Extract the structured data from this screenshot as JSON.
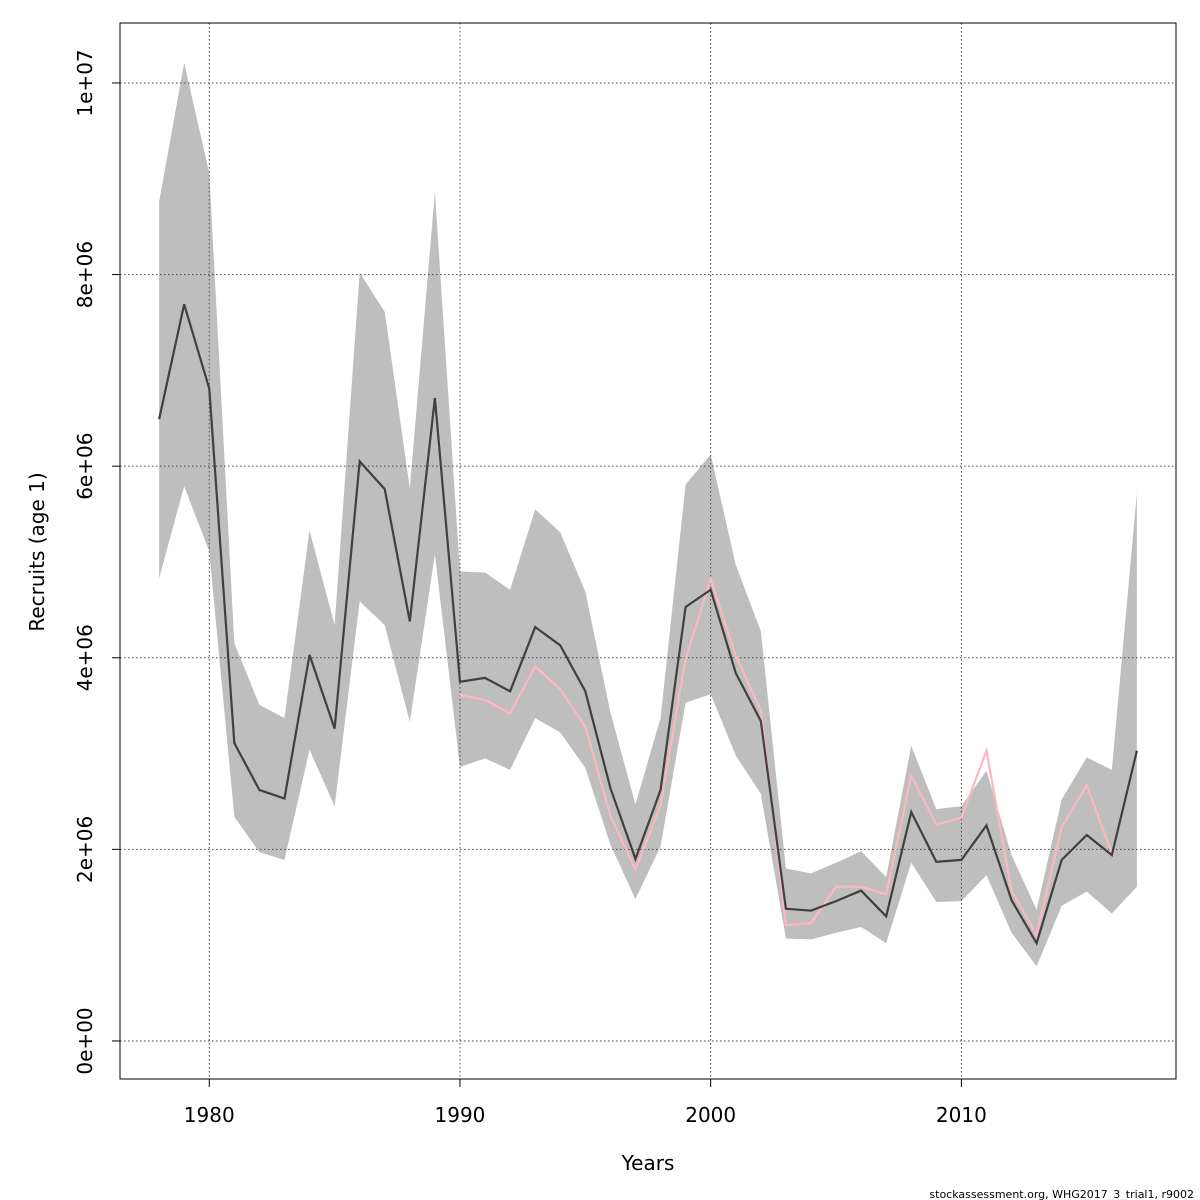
{
  "chart_data": {
    "type": "line",
    "xlabel": "Years",
    "ylabel": "Recruits (age 1)",
    "footer": "stockassessment.org, WHG2017_3_trial1, r9002",
    "x": [
      1978,
      1979,
      1980,
      1981,
      1982,
      1983,
      1984,
      1985,
      1986,
      1987,
      1988,
      1989,
      1990,
      1991,
      1992,
      1993,
      1994,
      1995,
      1996,
      1997,
      1998,
      1999,
      2000,
      2001,
      2002,
      2003,
      2004,
      2005,
      2006,
      2007,
      2008,
      2009,
      2010,
      2011,
      2012,
      2013,
      2014,
      2015,
      2016,
      2017
    ],
    "band": {
      "color": "#bebebe",
      "upper": [
        8760000,
        10210000,
        9060000,
        4150000,
        3510000,
        3370000,
        5330000,
        4340000,
        8020000,
        7610000,
        5770000,
        8860000,
        4900000,
        4890000,
        4710000,
        5550000,
        5310000,
        4690000,
        3430000,
        2470000,
        3370000,
        5810000,
        6120000,
        4970000,
        4280000,
        1800000,
        1750000,
        1860000,
        1980000,
        1710000,
        3080000,
        2420000,
        2450000,
        2820000,
        1940000,
        1370000,
        2520000,
        2960000,
        2830000,
        5720000
      ],
      "lower": [
        4830000,
        5790000,
        5110000,
        2340000,
        1970000,
        1890000,
        3040000,
        2450000,
        4590000,
        4340000,
        3330000,
        5080000,
        2860000,
        2950000,
        2830000,
        3370000,
        3220000,
        2850000,
        2050000,
        1480000,
        2030000,
        3530000,
        3620000,
        2980000,
        2580000,
        1070000,
        1060000,
        1130000,
        1190000,
        1020000,
        1860000,
        1450000,
        1460000,
        1730000,
        1130000,
        780000,
        1410000,
        1560000,
        1330000,
        1610000
      ]
    },
    "series": [
      {
        "color": "#ffb6c1",
        "values": [
          null,
          null,
          null,
          null,
          null,
          null,
          null,
          null,
          null,
          null,
          null,
          null,
          3610000,
          3560000,
          3420000,
          3910000,
          3670000,
          3280000,
          2350000,
          1790000,
          2460000,
          3990000,
          4820000,
          4020000,
          3450000,
          1210000,
          1230000,
          1610000,
          1610000,
          1530000,
          2770000,
          2260000,
          2330000,
          3030000,
          1570000,
          1110000,
          2230000,
          2670000,
          1960000,
          null
        ]
      },
      {
        "color": "#404040",
        "values": [
          6490000,
          7690000,
          6810000,
          3110000,
          2620000,
          2530000,
          4030000,
          3260000,
          6050000,
          5760000,
          4380000,
          6710000,
          3750000,
          3790000,
          3650000,
          4320000,
          4130000,
          3650000,
          2640000,
          1900000,
          2620000,
          4530000,
          4710000,
          3840000,
          3340000,
          1380000,
          1360000,
          1460000,
          1570000,
          1300000,
          2390000,
          1870000,
          1890000,
          2250000,
          1470000,
          1020000,
          1890000,
          2150000,
          1940000,
          3030000
        ]
      }
    ],
    "xlim": [
      1976.44,
      2018.56
    ],
    "xticks": [
      1980,
      1990,
      2000,
      2010
    ],
    "ylim": [
      -397000,
      10626000
    ],
    "yticks": [
      {
        "value": 0,
        "label": "0e+00"
      },
      {
        "value": 2000000,
        "label": "2e+06"
      },
      {
        "value": 4000000,
        "label": "4e+06"
      },
      {
        "value": 6000000,
        "label": "6e+06"
      },
      {
        "value": 8000000,
        "label": "8e+06"
      },
      {
        "value": 10000000,
        "label": "1e+07"
      }
    ],
    "grid": true
  }
}
